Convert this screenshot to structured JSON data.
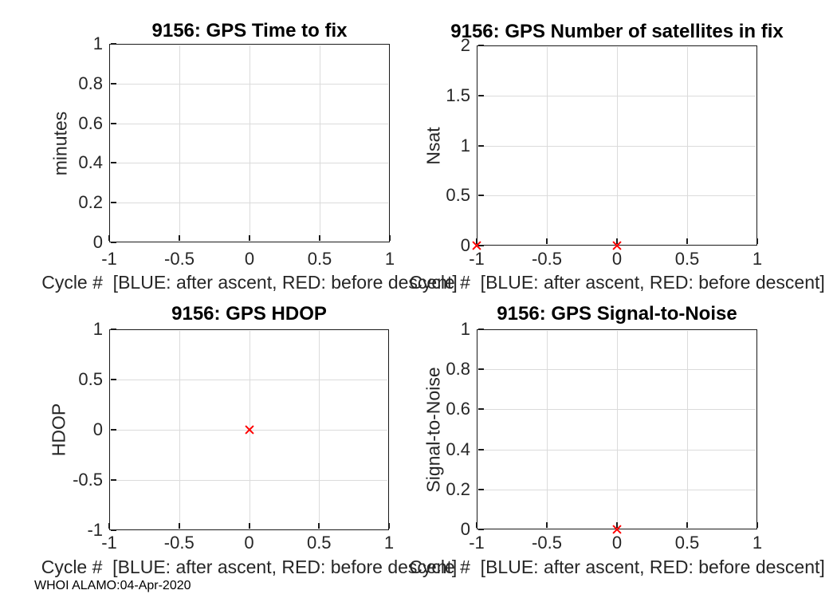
{
  "figure": {
    "background": "#ffffff",
    "watermark": "WHOI ALAMO:04-Apr-2020",
    "grid_color": "#dbdbdb",
    "axis_color": "#1a1a1a",
    "text_color": "#262626",
    "marker_red": "#ff0000",
    "marker_blue": "#0000ff"
  },
  "chart_data": [
    {
      "type": "scatter",
      "title": "9156: GPS Time to fix",
      "xlabel": "Cycle #  [BLUE: after ascent, RED: before descent]",
      "ylabel": "minutes",
      "xlim": [
        -1,
        1
      ],
      "ylim": [
        0,
        1
      ],
      "x_ticks": [
        -1,
        -0.5,
        0,
        0.5,
        1
      ],
      "x_tick_labels": [
        "-1",
        "-0.5",
        "0",
        "0.5",
        "1"
      ],
      "y_ticks": [
        0,
        0.2,
        0.4,
        0.6,
        0.8,
        1
      ],
      "y_tick_labels": [
        "0",
        "0.2",
        "0.4",
        "0.6",
        "0.8",
        "1"
      ],
      "grid": true,
      "legend_position": "none",
      "series": [
        {
          "name": "after ascent",
          "color": "#0000ff",
          "marker": "x",
          "points": []
        },
        {
          "name": "before descent",
          "color": "#ff0000",
          "marker": "x",
          "points": []
        }
      ]
    },
    {
      "type": "scatter",
      "title": "9156: GPS Number of satellites in fix",
      "xlabel": "Cycle #  [BLUE: after ascent, RED: before descent]",
      "ylabel": "Nsat",
      "xlim": [
        -1,
        1
      ],
      "ylim": [
        0,
        2
      ],
      "x_ticks": [
        -1,
        -0.5,
        0,
        0.5,
        1
      ],
      "x_tick_labels": [
        "-1",
        "-0.5",
        "0",
        "0.5",
        "1"
      ],
      "y_ticks": [
        0,
        0.5,
        1,
        1.5,
        2
      ],
      "y_tick_labels": [
        "0",
        "0.5",
        "1",
        "1.5",
        "2"
      ],
      "grid": true,
      "legend_position": "none",
      "series": [
        {
          "name": "after ascent",
          "color": "#0000ff",
          "marker": "x",
          "points": []
        },
        {
          "name": "before descent",
          "color": "#ff0000",
          "marker": "x",
          "points": [
            [
              -1,
              0
            ],
            [
              0,
              0
            ]
          ]
        }
      ]
    },
    {
      "type": "scatter",
      "title": "9156: GPS HDOP",
      "xlabel": "Cycle #  [BLUE: after ascent, RED: before descent]",
      "ylabel": "HDOP",
      "xlim": [
        -1,
        1
      ],
      "ylim": [
        -1,
        1
      ],
      "x_ticks": [
        -1,
        -0.5,
        0,
        0.5,
        1
      ],
      "x_tick_labels": [
        "-1",
        "-0.5",
        "0",
        "0.5",
        "1"
      ],
      "y_ticks": [
        -1,
        -0.5,
        0,
        0.5,
        1
      ],
      "y_tick_labels": [
        "-1",
        "-0.5",
        "0",
        "0.5",
        "1"
      ],
      "grid": true,
      "legend_position": "none",
      "series": [
        {
          "name": "after ascent",
          "color": "#0000ff",
          "marker": "x",
          "points": []
        },
        {
          "name": "before descent",
          "color": "#ff0000",
          "marker": "x",
          "points": [
            [
              0,
              0
            ]
          ]
        }
      ]
    },
    {
      "type": "scatter",
      "title": "9156: GPS Signal-to-Noise",
      "xlabel": "Cycle #  [BLUE: after ascent, RED: before descent]",
      "ylabel": "Signal-to-Noise",
      "xlim": [
        -1,
        1
      ],
      "ylim": [
        0,
        1
      ],
      "x_ticks": [
        -1,
        -0.5,
        0,
        0.5,
        1
      ],
      "x_tick_labels": [
        "-1",
        "-0.5",
        "0",
        "0.5",
        "1"
      ],
      "y_ticks": [
        0,
        0.2,
        0.4,
        0.6,
        0.8,
        1
      ],
      "y_tick_labels": [
        "0",
        "0.2",
        "0.4",
        "0.6",
        "0.8",
        "1"
      ],
      "grid": true,
      "legend_position": "none",
      "series": [
        {
          "name": "after ascent",
          "color": "#0000ff",
          "marker": "x",
          "points": []
        },
        {
          "name": "before descent",
          "color": "#ff0000",
          "marker": "x",
          "points": [
            [
              0,
              0
            ]
          ]
        }
      ]
    }
  ]
}
